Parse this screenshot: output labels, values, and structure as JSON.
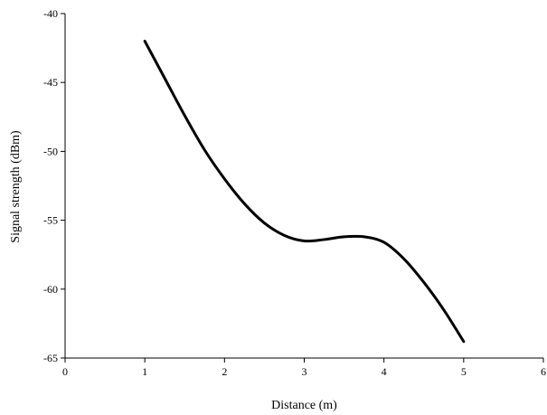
{
  "chart_data": {
    "type": "line",
    "title": "",
    "xlabel": "Distance (m)",
    "ylabel": "Signal strength (dBm)",
    "xlim": [
      0,
      6
    ],
    "ylim": [
      -65,
      -40
    ],
    "xticks": [
      0,
      1,
      2,
      3,
      4,
      5,
      6
    ],
    "yticks": [
      -40,
      -45,
      -50,
      -55,
      -60,
      -65
    ],
    "grid": false,
    "legend": "none",
    "series": [
      {
        "color": "#000000",
        "x": [
          1.0,
          1.25,
          1.5,
          1.75,
          2.0,
          2.25,
          2.5,
          2.75,
          3.0,
          3.25,
          3.5,
          3.75,
          4.0,
          4.25,
          4.5,
          4.75,
          5.0
        ],
        "y": [
          -42.0,
          -44.7,
          -47.4,
          -49.9,
          -52.0,
          -53.8,
          -55.2,
          -56.1,
          -56.5,
          -56.4,
          -56.2,
          -56.2,
          -56.6,
          -57.8,
          -59.5,
          -61.5,
          -63.8
        ]
      }
    ]
  }
}
